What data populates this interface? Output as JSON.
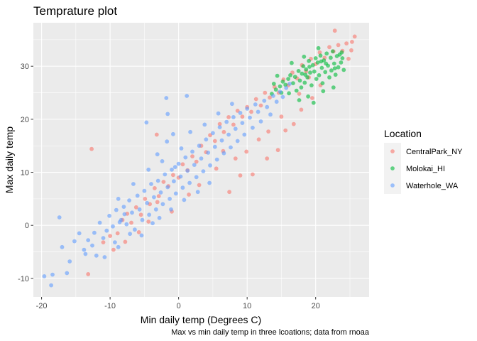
{
  "chart_data": {
    "type": "scatter",
    "title": "Temprature plot",
    "xlabel": "Min daily temp (Degrees C)",
    "ylabel": "Max daily temp",
    "caption": "Max vs min daily temp in three lcoations; data from rnoaa",
    "xlim": [
      -21.2,
      27.8
    ],
    "ylim": [
      -13.5,
      38.2
    ],
    "x_ticks": [
      -20,
      -10,
      0,
      10,
      20
    ],
    "y_ticks": [
      -10,
      0,
      10,
      20,
      30
    ],
    "x_tick_labels": [
      "-20",
      "-10",
      "0",
      "10",
      "20"
    ],
    "y_tick_labels": [
      "-10",
      "0",
      "10",
      "20",
      "30"
    ],
    "grid": true,
    "legend": {
      "title": "Location",
      "position": "right"
    },
    "colors": {
      "CentralPark_NY": "#F8766D",
      "Molokai_HI": "#00BA38",
      "Waterhole_WA": "#619CFF",
      "panel_bg": "#EBEBEB",
      "grid": "#FFFFFF"
    },
    "series": [
      {
        "name": "CentralPark_NY",
        "points": [
          [
            -13.2,
            -9.2
          ],
          [
            -12.7,
            14.4
          ],
          [
            -11.0,
            -3.2
          ],
          [
            -10.0,
            -2.0
          ],
          [
            -8.9,
            -1.5
          ],
          [
            -8.2,
            1.0
          ],
          [
            -7.5,
            2.2
          ],
          [
            -6.9,
            0.5
          ],
          [
            -6.2,
            3.4
          ],
          [
            -5.5,
            2.0
          ],
          [
            -4.9,
            5.0
          ],
          [
            -4.2,
            4.0
          ],
          [
            -3.5,
            7.0
          ],
          [
            -2.9,
            5.5
          ],
          [
            -2.2,
            8.2
          ],
          [
            -1.5,
            7.4
          ],
          [
            -3.2,
            17.1
          ],
          [
            -0.8,
            9.5
          ],
          [
            0.0,
            9.0
          ],
          [
            0.6,
            11.5
          ],
          [
            1.3,
            10.4
          ],
          [
            2.0,
            13.0
          ],
          [
            2.6,
            12.0
          ],
          [
            3.3,
            15.0
          ],
          [
            4.0,
            13.8
          ],
          [
            4.6,
            17.0
          ],
          [
            5.3,
            15.9
          ],
          [
            6.0,
            19.1
          ],
          [
            6.6,
            17.6
          ],
          [
            7.3,
            20.4
          ],
          [
            8.0,
            19.0
          ],
          [
            8.6,
            21.6
          ],
          [
            9.3,
            20.5
          ],
          [
            10.0,
            22.3
          ],
          [
            10.6,
            21.4
          ],
          [
            11.3,
            23.8
          ],
          [
            12.0,
            22.6
          ],
          [
            12.6,
            25.0
          ],
          [
            13.3,
            24.1
          ],
          [
            14.0,
            26.1
          ],
          [
            14.6,
            25.0
          ],
          [
            15.3,
            27.5
          ],
          [
            16.0,
            26.4
          ],
          [
            16.6,
            28.8
          ],
          [
            17.3,
            27.7
          ],
          [
            18.0,
            30.2
          ],
          [
            18.6,
            29.0
          ],
          [
            19.3,
            31.4
          ],
          [
            20.0,
            30.4
          ],
          [
            20.6,
            32.6
          ],
          [
            21.3,
            31.6
          ],
          [
            22.0,
            33.6
          ],
          [
            22.6,
            32.8
          ],
          [
            23.3,
            34.0
          ],
          [
            23.9,
            32.9
          ],
          [
            24.5,
            34.3
          ],
          [
            25.2,
            33.0
          ],
          [
            25.7,
            35.6
          ],
          [
            22.8,
            36.7
          ],
          [
            25.3,
            34.6
          ],
          [
            7.4,
            6.3
          ],
          [
            9.0,
            9.4
          ],
          [
            10.8,
            9.6
          ],
          [
            12.9,
            12.6
          ],
          [
            14.5,
            14.2
          ],
          [
            15.6,
            17.9
          ],
          [
            16.8,
            19.1
          ],
          [
            17.9,
            21.8
          ],
          [
            19.5,
            24.0
          ],
          [
            20.7,
            26.4
          ],
          [
            5.5,
            10.7
          ],
          [
            8.3,
            12.6
          ],
          [
            9.9,
            13.9
          ],
          [
            11.7,
            16.2
          ],
          [
            3.0,
            7.6
          ],
          [
            6.5,
            14.0
          ],
          [
            -3.1,
            4.4
          ],
          [
            -1.0,
            2.6
          ],
          [
            1.5,
            5.8
          ],
          [
            -9.5,
            -4.6
          ],
          [
            -7.8,
            -3.1
          ],
          [
            -5.8,
            -1.3
          ],
          [
            -4.4,
            0.7
          ],
          [
            15.0,
            20.5
          ],
          [
            17.6,
            24.8
          ],
          [
            19.0,
            27.9
          ],
          [
            13.1,
            17.7
          ],
          [
            24.8,
            31.4
          ]
        ]
      },
      {
        "name": "Molokai_HI",
        "points": [
          [
            13.6,
            24.8
          ],
          [
            14.2,
            25.6
          ],
          [
            14.8,
            26.2
          ],
          [
            15.2,
            27.1
          ],
          [
            15.6,
            26.5
          ],
          [
            16.0,
            27.6
          ],
          [
            16.3,
            28.3
          ],
          [
            16.7,
            26.8
          ],
          [
            17.0,
            28.0
          ],
          [
            17.2,
            25.4
          ],
          [
            17.5,
            29.1
          ],
          [
            17.7,
            27.3
          ],
          [
            18.0,
            28.6
          ],
          [
            18.2,
            30.0
          ],
          [
            18.4,
            26.9
          ],
          [
            18.6,
            29.4
          ],
          [
            18.8,
            27.9
          ],
          [
            19.0,
            31.0
          ],
          [
            19.2,
            28.8
          ],
          [
            19.4,
            26.4
          ],
          [
            19.6,
            30.2
          ],
          [
            19.8,
            29.0
          ],
          [
            20.0,
            31.5
          ],
          [
            20.1,
            27.6
          ],
          [
            20.3,
            30.7
          ],
          [
            20.5,
            28.3
          ],
          [
            20.7,
            32.0
          ],
          [
            20.9,
            29.7
          ],
          [
            21.0,
            26.8
          ],
          [
            21.2,
            31.1
          ],
          [
            21.4,
            28.9
          ],
          [
            21.6,
            32.4
          ],
          [
            21.8,
            30.1
          ],
          [
            22.0,
            27.9
          ],
          [
            22.2,
            31.6
          ],
          [
            22.3,
            29.2
          ],
          [
            22.5,
            32.8
          ],
          [
            22.7,
            30.5
          ],
          [
            22.9,
            28.4
          ],
          [
            23.1,
            31.9
          ],
          [
            23.3,
            29.8
          ],
          [
            23.5,
            32.2
          ],
          [
            23.7,
            30.7
          ],
          [
            23.9,
            31.5
          ],
          [
            24.1,
            29.3
          ],
          [
            17.6,
            23.6
          ],
          [
            18.9,
            24.3
          ],
          [
            19.7,
            23.1
          ],
          [
            16.1,
            24.9
          ],
          [
            21.1,
            25.3
          ],
          [
            22.6,
            26.0
          ],
          [
            15.0,
            25.0
          ],
          [
            16.5,
            30.6
          ],
          [
            18.3,
            31.8
          ],
          [
            20.4,
            33.4
          ],
          [
            23.8,
            32.6
          ],
          [
            14.4,
            28.2
          ],
          [
            13.9,
            26.7
          ],
          [
            17.9,
            26.0
          ],
          [
            21.5,
            30.5
          ],
          [
            22.8,
            29.6
          ],
          [
            19.1,
            29.9
          ],
          [
            20.8,
            30.9
          ],
          [
            18.5,
            28.4
          ]
        ]
      },
      {
        "name": "Waterhole_WA",
        "points": [
          [
            -19.6,
            -9.6
          ],
          [
            -18.6,
            -11.3
          ],
          [
            -18.4,
            -9.3
          ],
          [
            -17.4,
            1.5
          ],
          [
            -17.0,
            -4.1
          ],
          [
            -16.3,
            -9.0
          ],
          [
            -15.2,
            -3.0
          ],
          [
            -14.5,
            -1.5
          ],
          [
            -13.6,
            -5.4
          ],
          [
            -13.2,
            -2.8
          ],
          [
            -12.6,
            -3.8
          ],
          [
            -12.0,
            -5.7
          ],
          [
            -11.5,
            0.5
          ],
          [
            -11.0,
            -2.4
          ],
          [
            -10.5,
            -1.0
          ],
          [
            -10.1,
            1.8
          ],
          [
            -9.6,
            -0.2
          ],
          [
            -9.1,
            2.9
          ],
          [
            -8.8,
            -4.1
          ],
          [
            -8.4,
            1.0
          ],
          [
            -8.0,
            3.5
          ],
          [
            -7.6,
            0.2
          ],
          [
            -7.2,
            4.7
          ],
          [
            -6.8,
            2.4
          ],
          [
            -6.4,
            -0.8
          ],
          [
            -6.0,
            5.6
          ],
          [
            -5.7,
            3.0
          ],
          [
            -5.3,
            1.0
          ],
          [
            -5.0,
            6.5
          ],
          [
            -4.6,
            4.2
          ],
          [
            -4.3,
            2.0
          ],
          [
            -4.0,
            7.8
          ],
          [
            -3.6,
            5.3
          ],
          [
            -3.3,
            3.0
          ],
          [
            -3.0,
            8.4
          ],
          [
            -2.6,
            6.2
          ],
          [
            -2.3,
            4.0
          ],
          [
            -2.0,
            9.6
          ],
          [
            -1.6,
            7.2
          ],
          [
            -1.3,
            5.0
          ],
          [
            -1.0,
            10.5
          ],
          [
            -0.7,
            8.3
          ],
          [
            -0.4,
            6.0
          ],
          [
            0.0,
            11.6
          ],
          [
            0.3,
            9.2
          ],
          [
            0.6,
            7.1
          ],
          [
            1.0,
            12.8
          ],
          [
            1.3,
            10.3
          ],
          [
            1.6,
            8.0
          ],
          [
            2.0,
            13.9
          ],
          [
            2.3,
            11.4
          ],
          [
            2.6,
            9.1
          ],
          [
            3.0,
            15.0
          ],
          [
            3.3,
            12.6
          ],
          [
            3.6,
            10.2
          ],
          [
            4.0,
            16.2
          ],
          [
            4.3,
            13.7
          ],
          [
            4.6,
            11.3
          ],
          [
            5.0,
            17.4
          ],
          [
            5.3,
            14.8
          ],
          [
            5.6,
            12.4
          ],
          [
            6.0,
            18.5
          ],
          [
            6.3,
            16.0
          ],
          [
            6.6,
            13.6
          ],
          [
            7.0,
            19.5
          ],
          [
            7.3,
            17.1
          ],
          [
            7.6,
            14.7
          ],
          [
            8.0,
            20.4
          ],
          [
            8.3,
            18.2
          ],
          [
            8.6,
            15.9
          ],
          [
            9.0,
            21.2
          ],
          [
            9.3,
            19.3
          ],
          [
            9.6,
            17.1
          ],
          [
            10.0,
            22.0
          ],
          [
            10.4,
            20.3
          ],
          [
            10.8,
            18.4
          ],
          [
            11.2,
            22.8
          ],
          [
            11.6,
            21.4
          ],
          [
            12.0,
            19.6
          ],
          [
            12.5,
            23.5
          ],
          [
            12.9,
            22.3
          ],
          [
            13.4,
            20.9
          ],
          [
            13.8,
            24.4
          ],
          [
            14.3,
            23.3
          ],
          [
            14.8,
            25.2
          ],
          [
            15.2,
            24.2
          ],
          [
            15.7,
            25.9
          ],
          [
            16.2,
            26.7
          ],
          [
            -1.8,
            24.0
          ],
          [
            -1.6,
            21.0
          ],
          [
            1.2,
            24.4
          ],
          [
            -4.7,
            19.4
          ],
          [
            -0.8,
            17.2
          ],
          [
            -15.9,
            -6.8
          ],
          [
            -13.8,
            -4.6
          ],
          [
            -12.3,
            -1.4
          ],
          [
            -10.8,
            -6.0
          ],
          [
            -9.3,
            -3.2
          ],
          [
            -7.1,
            -1.6
          ],
          [
            -5.4,
            -1.9
          ],
          [
            -3.8,
            0.4
          ],
          [
            -2.8,
            1.4
          ],
          [
            -1.1,
            3.0
          ],
          [
            0.8,
            4.8
          ],
          [
            2.8,
            6.3
          ],
          [
            4.5,
            8.0
          ],
          [
            -6.6,
            7.8
          ],
          [
            -4.4,
            10.5
          ],
          [
            -2.4,
            12.1
          ],
          [
            0.4,
            14.5
          ],
          [
            -0.5,
            11.0
          ],
          [
            -8.8,
            5.0
          ],
          [
            3.8,
            19.0
          ],
          [
            5.8,
            21.1
          ],
          [
            7.8,
            22.9
          ],
          [
            -1.7,
            15.8
          ],
          [
            1.7,
            17.6
          ],
          [
            -3.1,
            13.4
          ],
          [
            -8.6,
            0.6
          ],
          [
            -7.9,
            2.1
          ]
        ]
      }
    ]
  }
}
